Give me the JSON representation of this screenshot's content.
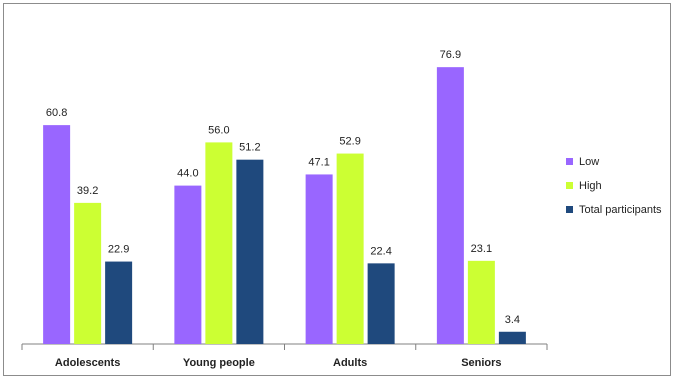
{
  "chart_data": {
    "type": "bar",
    "categories": [
      "Adolescents",
      "Young people",
      "Adults",
      "Seniors"
    ],
    "series": [
      {
        "name": "Low",
        "color": "#9966ff",
        "values": [
          60.8,
          44.0,
          47.1,
          76.9
        ]
      },
      {
        "name": "High",
        "color": "#ccff33",
        "values": [
          39.2,
          56.0,
          52.9,
          23.1
        ]
      },
      {
        "name": "Total participants",
        "color": "#1f497d",
        "values": [
          22.9,
          51.2,
          22.4,
          3.4
        ]
      }
    ],
    "value_labels": [
      [
        "60.8",
        "44.0",
        "47.1",
        "76.9"
      ],
      [
        "39.2",
        "56.0",
        "52.9",
        "23.1"
      ],
      [
        "22.9",
        "51.2",
        "22.4",
        "3.4"
      ]
    ],
    "ylim": [
      0,
      100
    ],
    "grid": false,
    "legend_position": "right"
  }
}
